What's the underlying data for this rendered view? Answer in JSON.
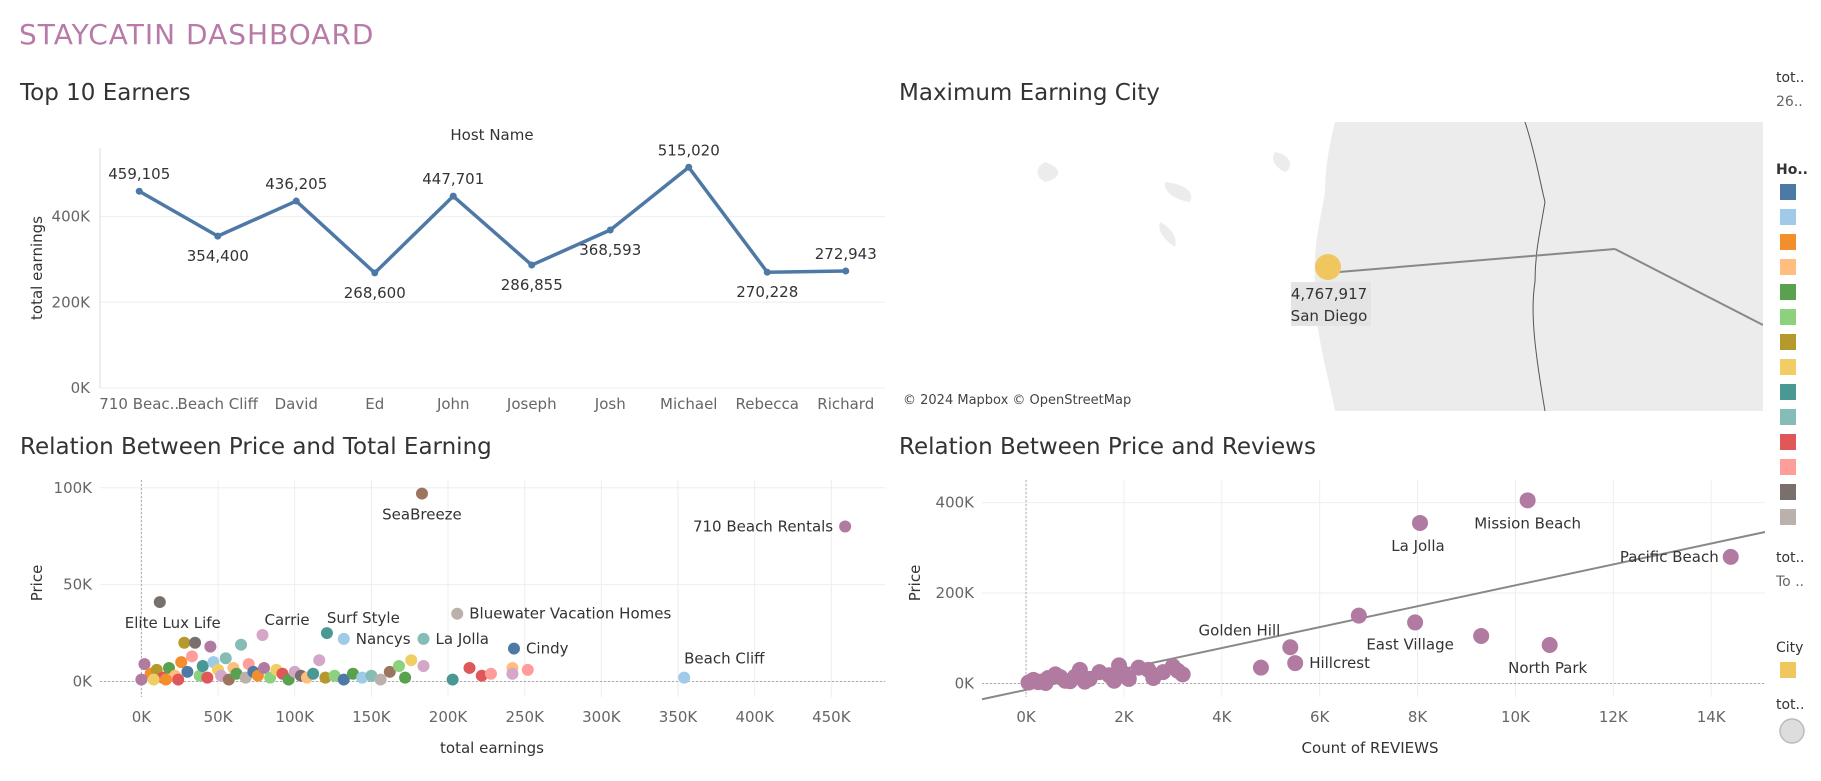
{
  "dashboard": {
    "title": "STAYCATIN DASHBOARD"
  },
  "panels": {
    "top_earners": "Top 10 Earners",
    "max_city": "Maximum Earning City",
    "price_earning": "Relation Between Price and Total Earning",
    "price_reviews": "Relation Between Price and Reviews"
  },
  "map": {
    "attribution": "© 2024 Mapbox © OpenStreetMap",
    "city": "San Diego",
    "value_label": "4,767,917",
    "marker_color": "#f0c75e"
  },
  "legend": {
    "total_title": "tot..",
    "total_value": "26..",
    "host_title": "Ho..",
    "host_colors": [
      "#4e79a7",
      "#a0cbe8",
      "#f28e2b",
      "#ffbe7d",
      "#59a14f",
      "#8cd17d",
      "#b6992d",
      "#f1ce63",
      "#499894",
      "#86bcb6",
      "#e15759",
      "#ff9d9a",
      "#79706e",
      "#bab0ac"
    ],
    "total2_title": "tot..",
    "total2_value": "To ..",
    "city_title": "City",
    "city_color": "#f0c75e",
    "total3_title": "tot.."
  },
  "chart_data": [
    {
      "type": "line",
      "title": "Top 10 Earners",
      "xlabel": "Host Name",
      "ylabel": "total earnings",
      "categories": [
        "710 Beac..",
        "Beach Cliff",
        "David",
        "Ed",
        "John",
        "Joseph",
        "Josh",
        "Michael",
        "Rebecca",
        "Richard"
      ],
      "values": [
        459105,
        354400,
        436205,
        268600,
        447701,
        286855,
        368593,
        515020,
        270228,
        272943
      ],
      "labels": [
        "459,105",
        "354,400",
        "436,205",
        "268,600",
        "447,701",
        "286,855",
        "368,593",
        "515,020",
        "270,228",
        "272,943"
      ],
      "yticks": [
        "0K",
        "200K",
        "400K"
      ],
      "ylim": [
        0,
        560000
      ],
      "color": "#4e79a7",
      "grid": true
    },
    {
      "type": "scatter",
      "title": "Relation Between Price and Total Earning",
      "xlabel": "total earnings",
      "ylabel": "Price",
      "xticks": [
        "0K",
        "50K",
        "100K",
        "150K",
        "200K",
        "250K",
        "300K",
        "350K",
        "400K",
        "450K"
      ],
      "yticks": [
        "0K",
        "50K",
        "100K"
      ],
      "xlim": [
        -27000,
        485000
      ],
      "ylim": [
        -8000,
        104000
      ],
      "labeled_points": [
        {
          "x": 183000,
          "y": 97000,
          "label": "SeaBreeze",
          "color": "#9c755f"
        },
        {
          "x": 459000,
          "y": 80000,
          "label": "710 Beach Rentals",
          "color": "#b07aa1"
        },
        {
          "x": 12000,
          "y": 41000,
          "label": "Elite Lux Life",
          "color": "#79706e"
        },
        {
          "x": 79000,
          "y": 24000,
          "label": "Carrie",
          "color": "#d4a6c8"
        },
        {
          "x": 121000,
          "y": 25000,
          "label": "Surf Style",
          "color": "#499894"
        },
        {
          "x": 132000,
          "y": 22000,
          "label": "Nancys",
          "color": "#a0cbe8"
        },
        {
          "x": 184000,
          "y": 22000,
          "label": "La Jolla",
          "color": "#86bcb6"
        },
        {
          "x": 206000,
          "y": 35000,
          "label": "Bluewater Vacation Homes",
          "color": "#bab0ac"
        },
        {
          "x": 243000,
          "y": 17000,
          "label": "Cindy",
          "color": "#4e79a7"
        },
        {
          "x": 354000,
          "y": 2000,
          "label": "Beach Cliff",
          "color": "#a0cbe8"
        }
      ],
      "points": [
        {
          "x": 2000,
          "y": 9000,
          "color": "#b07aa1"
        },
        {
          "x": 6000,
          "y": 4000,
          "color": "#f28e2b"
        },
        {
          "x": 10000,
          "y": 6000,
          "color": "#b6992d"
        },
        {
          "x": 14000,
          "y": 2000,
          "color": "#e15759"
        },
        {
          "x": 18000,
          "y": 7000,
          "color": "#59a14f"
        },
        {
          "x": 22000,
          "y": 3000,
          "color": "#ffbe7d"
        },
        {
          "x": 26000,
          "y": 10000,
          "color": "#f28e2b"
        },
        {
          "x": 28000,
          "y": 20000,
          "color": "#b6992d"
        },
        {
          "x": 30000,
          "y": 5000,
          "color": "#4e79a7"
        },
        {
          "x": 33000,
          "y": 13000,
          "color": "#ff9d9a"
        },
        {
          "x": 35000,
          "y": 20000,
          "color": "#79706e"
        },
        {
          "x": 38000,
          "y": 3000,
          "color": "#8cd17d"
        },
        {
          "x": 40000,
          "y": 8000,
          "color": "#499894"
        },
        {
          "x": 43000,
          "y": 2000,
          "color": "#e15759"
        },
        {
          "x": 45000,
          "y": 18000,
          "color": "#b07aa1"
        },
        {
          "x": 47000,
          "y": 10000,
          "color": "#a0cbe8"
        },
        {
          "x": 50000,
          "y": 6000,
          "color": "#f1ce63"
        },
        {
          "x": 52000,
          "y": 3000,
          "color": "#d4a6c8"
        },
        {
          "x": 55000,
          "y": 12000,
          "color": "#86bcb6"
        },
        {
          "x": 57000,
          "y": 1000,
          "color": "#9c755f"
        },
        {
          "x": 60000,
          "y": 7000,
          "color": "#ffbe7d"
        },
        {
          "x": 62000,
          "y": 4000,
          "color": "#59a14f"
        },
        {
          "x": 65000,
          "y": 19000,
          "color": "#86bcb6"
        },
        {
          "x": 68000,
          "y": 2000,
          "color": "#bab0ac"
        },
        {
          "x": 70000,
          "y": 9000,
          "color": "#ff9d9a"
        },
        {
          "x": 73000,
          "y": 5000,
          "color": "#4e79a7"
        },
        {
          "x": 76000,
          "y": 3000,
          "color": "#f28e2b"
        },
        {
          "x": 80000,
          "y": 7000,
          "color": "#b07aa1"
        },
        {
          "x": 84000,
          "y": 2000,
          "color": "#8cd17d"
        },
        {
          "x": 88000,
          "y": 6000,
          "color": "#f1ce63"
        },
        {
          "x": 92000,
          "y": 4000,
          "color": "#e15759"
        },
        {
          "x": 96000,
          "y": 1000,
          "color": "#59a14f"
        },
        {
          "x": 100000,
          "y": 5000,
          "color": "#d4a6c8"
        },
        {
          "x": 104000,
          "y": 3000,
          "color": "#79706e"
        },
        {
          "x": 108000,
          "y": 2000,
          "color": "#ffbe7d"
        },
        {
          "x": 112000,
          "y": 4000,
          "color": "#499894"
        },
        {
          "x": 116000,
          "y": 11000,
          "color": "#d4a6c8"
        },
        {
          "x": 120000,
          "y": 2000,
          "color": "#b6992d"
        },
        {
          "x": 126000,
          "y": 3000,
          "color": "#8cd17d"
        },
        {
          "x": 132000,
          "y": 1000,
          "color": "#4e79a7"
        },
        {
          "x": 138000,
          "y": 4000,
          "color": "#59a14f"
        },
        {
          "x": 144000,
          "y": 2000,
          "color": "#a0cbe8"
        },
        {
          "x": 150000,
          "y": 3000,
          "color": "#86bcb6"
        },
        {
          "x": 156000,
          "y": 1000,
          "color": "#bab0ac"
        },
        {
          "x": 162000,
          "y": 5000,
          "color": "#9c755f"
        },
        {
          "x": 168000,
          "y": 8000,
          "color": "#8cd17d"
        },
        {
          "x": 172000,
          "y": 2000,
          "color": "#59a14f"
        },
        {
          "x": 176000,
          "y": 11000,
          "color": "#f1ce63"
        },
        {
          "x": 184000,
          "y": 8000,
          "color": "#d4a6c8"
        },
        {
          "x": 203000,
          "y": 1000,
          "color": "#499894"
        },
        {
          "x": 214000,
          "y": 7000,
          "color": "#e15759"
        },
        {
          "x": 222000,
          "y": 3000,
          "color": "#e15759"
        },
        {
          "x": 228000,
          "y": 4000,
          "color": "#ff9d9a"
        },
        {
          "x": 242000,
          "y": 7000,
          "color": "#ffbe7d"
        },
        {
          "x": 242000,
          "y": 4000,
          "color": "#d4a6c8"
        },
        {
          "x": 252000,
          "y": 6000,
          "color": "#ff9d9a"
        },
        {
          "x": 0,
          "y": 1000,
          "color": "#b07aa1"
        },
        {
          "x": 8000,
          "y": 1000,
          "color": "#f1ce63"
        },
        {
          "x": 16000,
          "y": 1000,
          "color": "#f28e2b"
        },
        {
          "x": 24000,
          "y": 1000,
          "color": "#e15759"
        }
      ]
    },
    {
      "type": "scatter",
      "title": "Relation Between Price and Reviews",
      "xlabel": "Count of REVIEWS",
      "ylabel": "Price",
      "xticks": [
        "0K",
        "2K",
        "4K",
        "6K",
        "8K",
        "10K",
        "12K",
        "14K"
      ],
      "yticks": [
        "0K",
        "200K",
        "400K"
      ],
      "xlim": [
        -900,
        15100
      ],
      "ylim": [
        -30000,
        450000
      ],
      "color": "#b07aa1",
      "trend": [
        [
          -900,
          -35000
        ],
        [
          15100,
          335000
        ]
      ],
      "labeled_points": [
        {
          "x": 10250,
          "y": 405000,
          "label": "Mission Beach"
        },
        {
          "x": 8050,
          "y": 355000,
          "label": "La Jolla"
        },
        {
          "x": 14400,
          "y": 280000,
          "label": "Pacific Beach"
        },
        {
          "x": 6800,
          "y": 150000,
          "label": "East Village"
        },
        {
          "x": 7950,
          "y": 135000,
          "label": "East Village_point"
        },
        {
          "x": 10700,
          "y": 85000,
          "label": "North Park"
        },
        {
          "x": 5400,
          "y": 80000,
          "label": "Golden Hill"
        },
        {
          "x": 5500,
          "y": 45000,
          "label": "Hillcrest"
        }
      ],
      "points": [
        {
          "x": 9300,
          "y": 105000
        },
        {
          "x": 4800,
          "y": 35000
        },
        {
          "x": 50,
          "y": 2000
        },
        {
          "x": 150,
          "y": 8000
        },
        {
          "x": 300,
          "y": 4000
        },
        {
          "x": 450,
          "y": 12000
        },
        {
          "x": 600,
          "y": 20000
        },
        {
          "x": 800,
          "y": 6000
        },
        {
          "x": 1000,
          "y": 15000
        },
        {
          "x": 1100,
          "y": 30000
        },
        {
          "x": 1300,
          "y": 10000
        },
        {
          "x": 1500,
          "y": 25000
        },
        {
          "x": 1700,
          "y": 18000
        },
        {
          "x": 1900,
          "y": 40000
        },
        {
          "x": 2000,
          "y": 22000
        },
        {
          "x": 2100,
          "y": 10000
        },
        {
          "x": 2300,
          "y": 35000
        },
        {
          "x": 2500,
          "y": 30000
        },
        {
          "x": 2800,
          "y": 25000
        },
        {
          "x": 3000,
          "y": 38000
        },
        {
          "x": 3100,
          "y": 28000
        },
        {
          "x": 3200,
          "y": 20000
        },
        {
          "x": 700,
          "y": 14000
        },
        {
          "x": 250,
          "y": 3000
        },
        {
          "x": 1800,
          "y": 6000
        },
        {
          "x": 400,
          "y": 1000
        },
        {
          "x": 900,
          "y": 5000
        },
        {
          "x": 1200,
          "y": 4000
        },
        {
          "x": 2600,
          "y": 12000
        }
      ]
    }
  ]
}
